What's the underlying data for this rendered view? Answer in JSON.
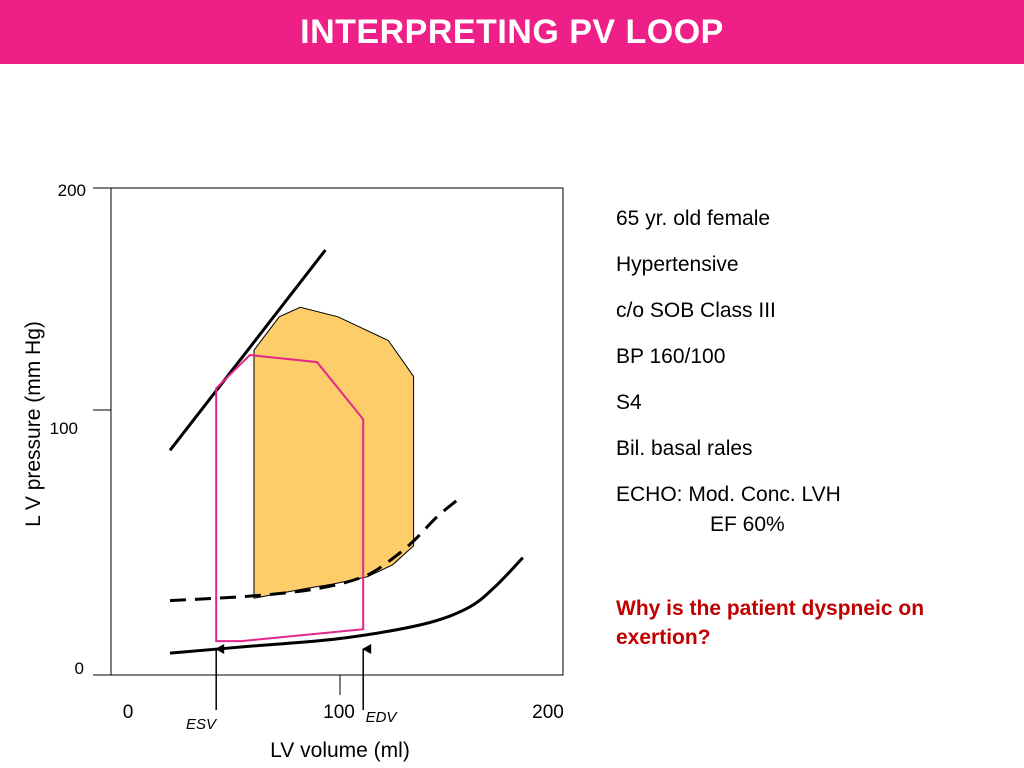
{
  "title": "INTERPRETING PV LOOP",
  "colors": {
    "title_bar": "#ee1f86",
    "loop_fill": "#fdcd6a",
    "loop_outline": "#e3268b",
    "question": "#c00000"
  },
  "chart": {
    "y_axis_label": "L V  pressure (mm Hg)",
    "x_axis_label": "LV volume (ml)",
    "y_ticks": [
      "200",
      "100",
      "0"
    ],
    "x_ticks": [
      "0",
      "100",
      "200"
    ],
    "esv_label": "ESV",
    "edv_label": "EDV"
  },
  "chart_data": {
    "type": "diagram",
    "x_range": [
      0,
      200
    ],
    "y_range": [
      0,
      200
    ],
    "espvr_line": [
      [
        20,
        90
      ],
      [
        94,
        174
      ]
    ],
    "normal_loop": [
      [
        60,
        28
      ],
      [
        60,
        132
      ],
      [
        72,
        146
      ],
      [
        82,
        150
      ],
      [
        100,
        146
      ],
      [
        124,
        136
      ],
      [
        136,
        121
      ],
      [
        136,
        50
      ],
      [
        126,
        42
      ],
      [
        114,
        37
      ],
      [
        98,
        34
      ],
      [
        84,
        32
      ],
      [
        60,
        28
      ]
    ],
    "patient_loop": [
      [
        42,
        10
      ],
      [
        42,
        116
      ],
      [
        58,
        130
      ],
      [
        90,
        127
      ],
      [
        112,
        103
      ],
      [
        112,
        15
      ],
      [
        54,
        10
      ],
      [
        42,
        10
      ]
    ],
    "edpvr_normal": [
      [
        20,
        5
      ],
      [
        60,
        8
      ],
      [
        100,
        11
      ],
      [
        140,
        17
      ],
      [
        162,
        24
      ],
      [
        175,
        33
      ],
      [
        188,
        45
      ]
    ],
    "edpvr_patient_dashed": [
      [
        20,
        27
      ],
      [
        60,
        29
      ],
      [
        90,
        32
      ],
      [
        112,
        37
      ],
      [
        125,
        44
      ],
      [
        136,
        52
      ],
      [
        147,
        62
      ],
      [
        158,
        70
      ]
    ],
    "markers": [
      {
        "label": "ESV",
        "x": 42
      },
      {
        "label": "EDV",
        "x": 112
      }
    ]
  },
  "info": {
    "age": "65 yr. old female",
    "condition": "Hypertensive",
    "complaint": "c/o SOB Class III",
    "bp": "BP 160/100",
    "s4": "S4",
    "rales": "Bil. basal rales",
    "echo": "ECHO: Mod. Conc. LVH",
    "ef": "EF 60%"
  },
  "question": "Why is the patient dyspneic on exertion?"
}
